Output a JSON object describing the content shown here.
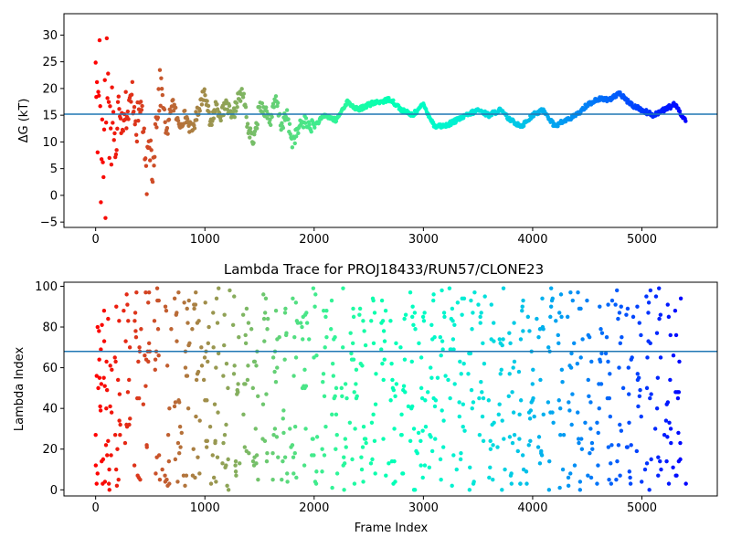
{
  "chart_data": [
    {
      "type": "scatter",
      "title": "",
      "xlabel": "",
      "ylabel": "ΔG (kT)",
      "xlim": [
        -290,
        5690
      ],
      "ylim": [
        -6,
        34
      ],
      "xticks": [
        0,
        1000,
        2000,
        3000,
        4000,
        5000
      ],
      "yticks": [
        -5,
        0,
        5,
        10,
        15,
        20,
        25,
        30
      ],
      "hline": 15.2,
      "hline_color": "#1f77b4",
      "colormap": "rainbow (red at frame 0 → violet at last frame)",
      "series": [
        {
          "frames": [
            0,
            5,
            10,
            15,
            20,
            25,
            30,
            40,
            50,
            60,
            70,
            80,
            90,
            100,
            110,
            120,
            130,
            150,
            170,
            190,
            210,
            240,
            270,
            300,
            340,
            380,
            420,
            460,
            500,
            520,
            560,
            600,
            650,
            700,
            760,
            820,
            880,
            940,
            1000,
            1050,
            1100,
            1150,
            1200,
            1250,
            1300,
            1350,
            1400,
            1450,
            1500,
            1550,
            1600,
            1650,
            1700,
            1750,
            1800,
            1850,
            1900,
            1950,
            2000,
            2100,
            2200,
            2300,
            2400,
            2500,
            2600,
            2700,
            2800,
            2900,
            3000,
            3100,
            3200,
            3300,
            3400,
            3500,
            3600,
            3700,
            3800,
            3900,
            4000,
            4100,
            4200,
            4300,
            4400,
            4500,
            4600,
            4700,
            4800,
            4900,
            5000,
            5100,
            5200,
            5300,
            5400
          ],
          "values": [
            30,
            10,
            20,
            25,
            3.5,
            18,
            22,
            28,
            0,
            14,
            5,
            25,
            -3,
            31,
            16,
            22,
            10,
            18,
            12,
            5,
            20,
            14,
            17,
            15,
            19,
            13,
            18,
            2.5,
            10,
            5,
            16,
            21,
            11,
            18,
            13,
            15,
            12,
            16,
            20,
            13,
            17,
            15,
            17,
            14,
            18,
            19,
            12,
            10,
            17,
            16,
            14,
            18,
            13,
            15,
            10,
            12,
            14,
            13,
            13,
            15,
            14,
            17.5,
            16,
            17,
            17.5,
            18,
            16,
            15,
            17,
            13,
            13,
            14,
            15,
            16,
            15,
            16,
            14,
            13,
            15,
            16,
            13,
            14,
            15,
            17,
            18,
            18,
            19,
            17,
            16,
            15,
            16,
            17,
            14
          ]
        }
      ]
    },
    {
      "type": "scatter",
      "title": "Lambda Trace for PROJ18433/RUN57/CLONE23",
      "xlabel": "Frame Index",
      "ylabel": "Lambda Index",
      "xlim": [
        -290,
        5690
      ],
      "ylim": [
        -3,
        102
      ],
      "xticks": [
        0,
        1000,
        2000,
        3000,
        4000,
        5000
      ],
      "yticks": [
        0,
        20,
        40,
        60,
        80,
        100
      ],
      "hline": 68,
      "hline_color": "#1f77b4",
      "colormap": "rainbow (red at frame 0 → violet at last frame)",
      "frame_range": [
        0,
        5400
      ],
      "lambda_range": [
        0,
        99
      ],
      "note": "dense vertical bands of points, each band spanning lambda 0–99"
    }
  ]
}
